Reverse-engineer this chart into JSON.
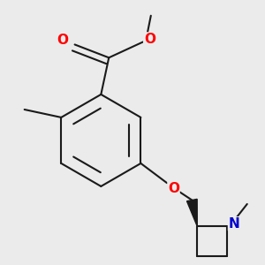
{
  "background_color": "#ebebeb",
  "bond_color": "#1a1a1a",
  "bond_width": 1.5,
  "atom_colors": {
    "O": "#ff0000",
    "N": "#0000cc",
    "C": "#1a1a1a"
  },
  "font_size_atom": 10,
  "fig_width": 3.0,
  "fig_height": 3.0,
  "dpi": 100,
  "xlim": [
    0.0,
    1.0
  ],
  "ylim": [
    0.05,
    1.05
  ]
}
